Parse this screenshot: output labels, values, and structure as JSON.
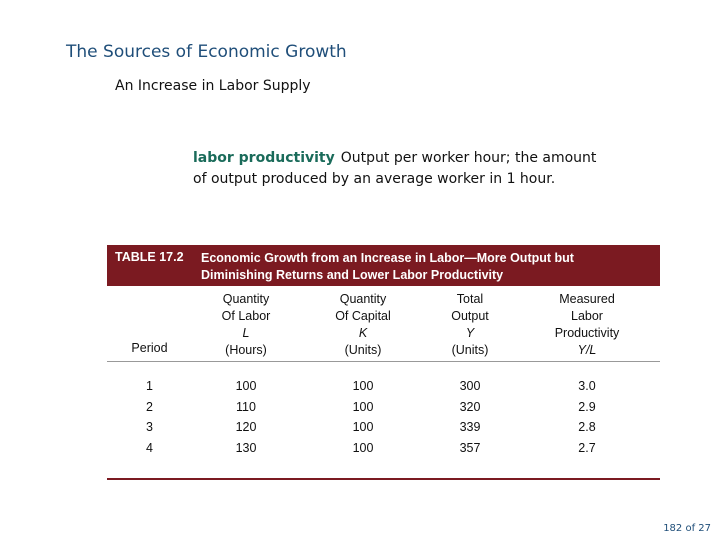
{
  "slide": {
    "title": "The Sources of Economic Growth",
    "subtitle": "An Increase in Labor Supply"
  },
  "definition": {
    "term": "labor productivity",
    "text": "Output per worker hour; the amount of output produced by an average worker in 1 hour."
  },
  "table": {
    "number": "TABLE 17.2",
    "title": "Economic Growth from an Increase in Labor—More Output but Diminishing Returns and Lower Labor Productivity",
    "columns": [
      {
        "lines": [
          "Period"
        ],
        "var": ""
      },
      {
        "lines": [
          "Quantity",
          "Of Labor"
        ],
        "var": "L",
        "unit": "(Hours)"
      },
      {
        "lines": [
          "Quantity",
          "Of Capital"
        ],
        "var": "K",
        "unit": "(Units)"
      },
      {
        "lines": [
          "Total",
          "Output"
        ],
        "var": "Y",
        "unit": "(Units)"
      },
      {
        "lines": [
          "Measured",
          "Labor",
          "Productivity"
        ],
        "var": "Y/L",
        "unit": ""
      }
    ],
    "rows": [
      [
        "1",
        "100",
        "100",
        "300",
        "3.0"
      ],
      [
        "2",
        "110",
        "100",
        "320",
        "2.9"
      ],
      [
        "3",
        "120",
        "100",
        "339",
        "2.8"
      ],
      [
        "4",
        "130",
        "100",
        "357",
        "2.7"
      ]
    ]
  },
  "footer": {
    "page_number": "182 of 27"
  }
}
